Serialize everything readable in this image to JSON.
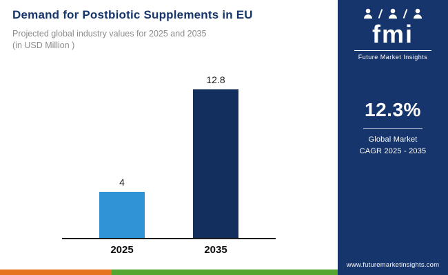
{
  "header": {
    "title": "Demand for Postbiotic Supplements in EU",
    "subtitle": "Projected global industry values for 2025 and 2035",
    "unit": "(in USD Million )"
  },
  "chart_data": {
    "type": "bar",
    "categories": [
      "2025",
      "2035"
    ],
    "values": [
      4,
      12.8
    ],
    "value_labels": [
      "4",
      "12.8"
    ],
    "title": "Demand for Postbiotic Supplements in EU",
    "xlabel": "",
    "ylabel": "USD Million",
    "ylim": [
      0,
      14
    ],
    "bar_colors": [
      "#2F93D6",
      "#132F5E"
    ],
    "grid": false,
    "legend": false
  },
  "sidebar": {
    "logo": {
      "brand": "fmi",
      "brand_sub": "Future Market Insights"
    },
    "stat": {
      "value": "12.3%",
      "label_line1": "Global Market",
      "label_line2": "CAGR 2025 - 2035"
    },
    "website": "www.futuremarketinsights.com"
  },
  "colors": {
    "navy": "#16356C",
    "bar_light": "#2F93D6",
    "bar_dark": "#132F5E",
    "strip_orange": "#E6731E",
    "strip_green": "#55A630",
    "text_gray": "#8B8B8B"
  }
}
